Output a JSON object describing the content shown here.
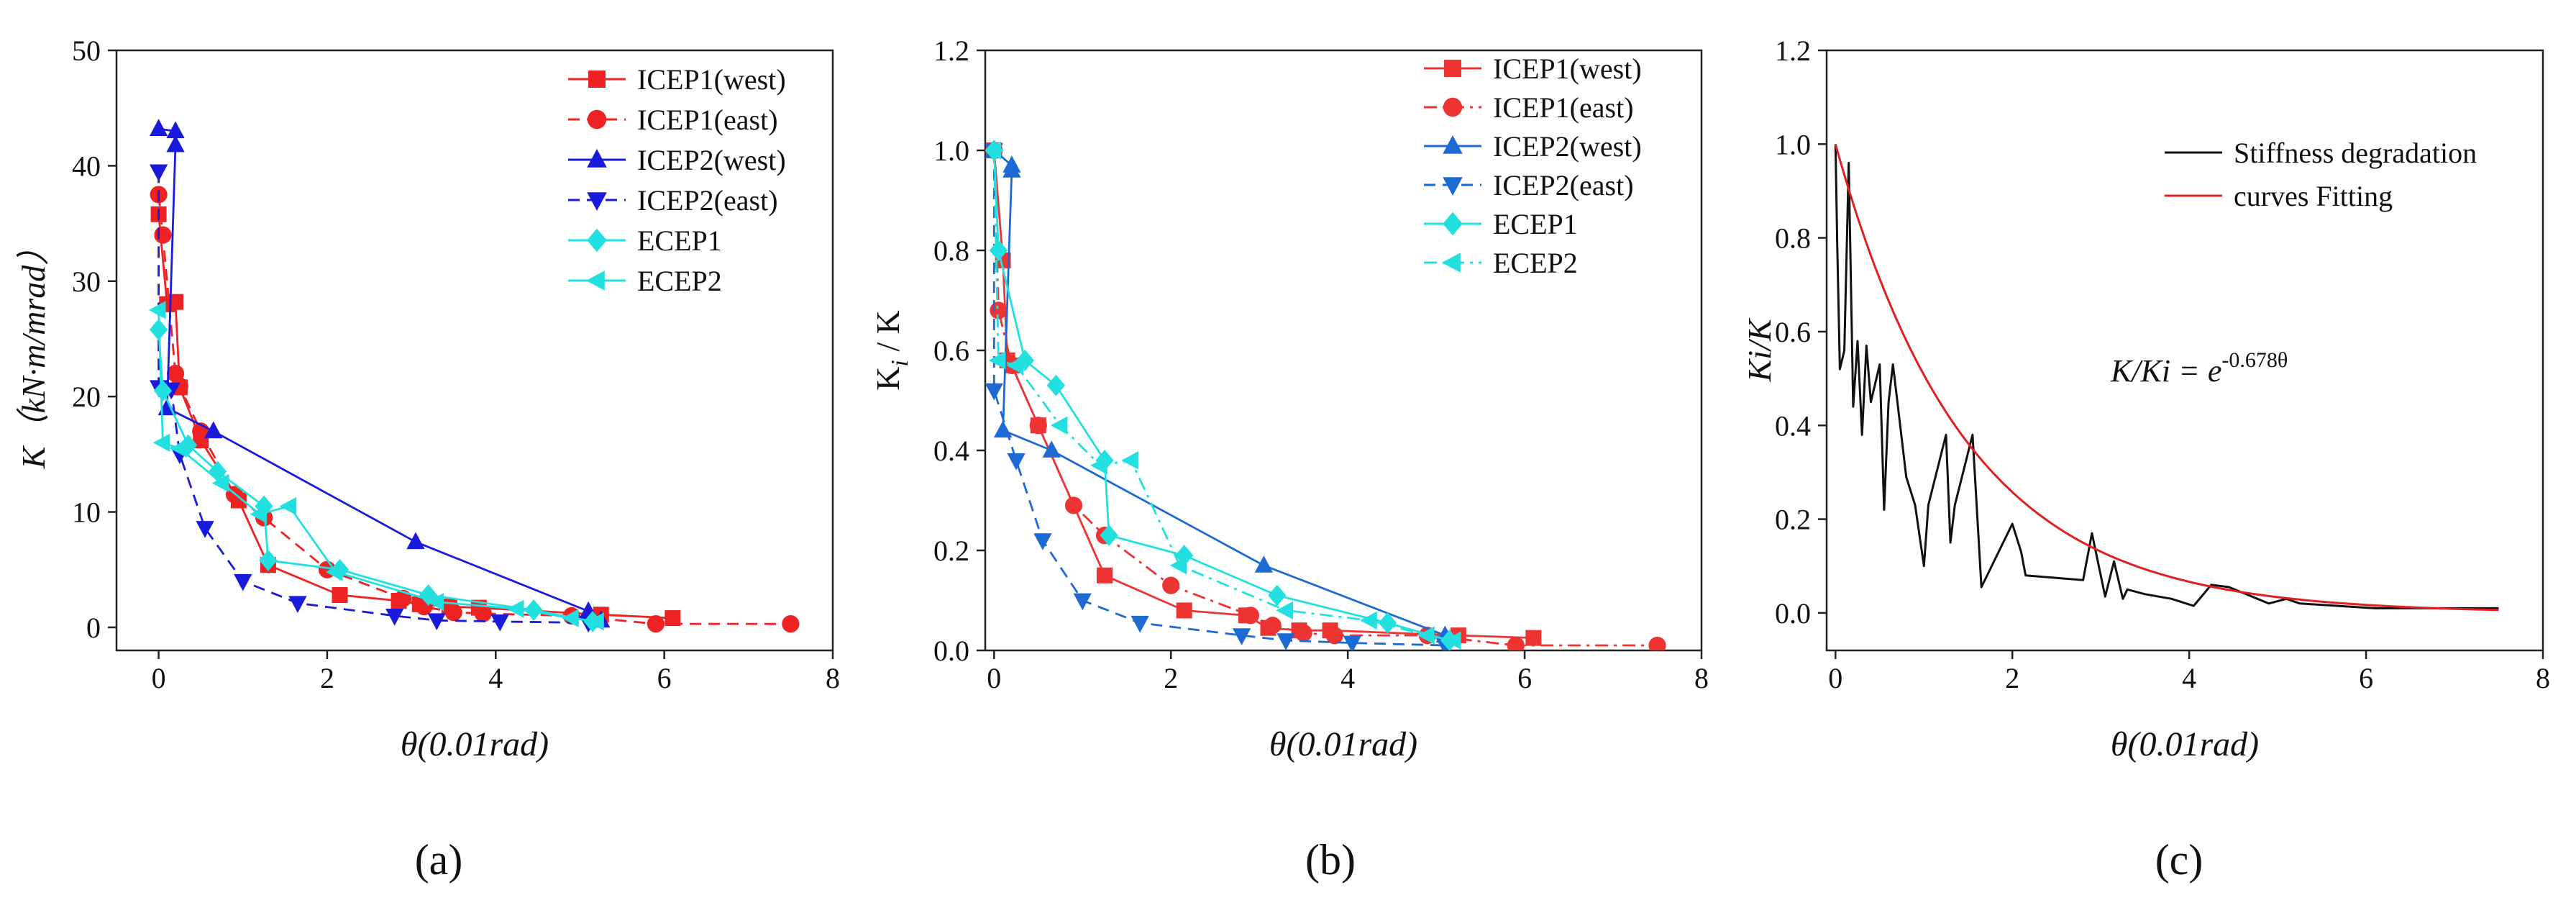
{
  "panels": [
    {
      "panel_label": "(a)",
      "chart_data": {
        "type": "line",
        "title": "",
        "xlabel": "θ(0.01rad)",
        "ylabel": "K（kN·m/mrad）",
        "xlim": [
          -0.5,
          8
        ],
        "ylim": [
          -2,
          50
        ],
        "xticks": [
          0,
          2,
          4,
          6,
          8
        ],
        "yticks": [
          0,
          10,
          20,
          30,
          40,
          50
        ],
        "legend_position": "top-right",
        "series": [
          {
            "name": "ICEP1(west)",
            "color": "#ee2222",
            "marker": "square",
            "dash": "solid",
            "x": [
              0.0,
              0.1,
              0.2,
              0.25,
              0.5,
              0.95,
              1.3,
              2.15,
              2.85,
              3.1,
              3.45,
              3.8,
              5.25,
              6.1
            ],
            "y": [
              35.8,
              28.0,
              28.2,
              20.8,
              16.2,
              11.0,
              5.4,
              2.8,
              2.3,
              2.0,
              1.8,
              1.7,
              1.1,
              0.8
            ]
          },
          {
            "name": "ICEP1(east)",
            "color": "#ee2222",
            "marker": "circle",
            "dash": "dashed",
            "x": [
              0.0,
              0.05,
              0.2,
              0.25,
              0.5,
              0.9,
              1.25,
              2.0,
              2.9,
              3.15,
              3.5,
              3.85,
              4.9,
              5.9,
              7.5
            ],
            "y": [
              37.5,
              34.0,
              22.0,
              20.9,
              17.0,
              11.5,
              9.5,
              5.0,
              2.5,
              1.8,
              1.3,
              1.2,
              1.0,
              0.3,
              0.3
            ]
          },
          {
            "name": "ICEP2(west)",
            "color": "#1a1adc",
            "marker": "triangle-up",
            "dash": "solid",
            "x": [
              0.0,
              0.2,
              0.2,
              0.1,
              0.65,
              3.05,
              5.1,
              5.25
            ],
            "y": [
              43.2,
              43.0,
              41.8,
              19.0,
              17.0,
              7.4,
              1.4,
              0.6
            ]
          },
          {
            "name": "ICEP2(east)",
            "color": "#1a1adc",
            "marker": "triangle-down",
            "dash": "dashed",
            "x": [
              0.0,
              0.0,
              0.15,
              0.25,
              0.55,
              1.0,
              1.65,
              2.8,
              3.3,
              4.05,
              5.1
            ],
            "y": [
              39.5,
              20.8,
              20.6,
              15.0,
              8.6,
              4.0,
              2.1,
              1.0,
              0.6,
              0.5,
              0.4
            ]
          },
          {
            "name": "ECEP1",
            "color": "#22e0e0",
            "marker": "diamond",
            "dash": "solid",
            "x": [
              0.0,
              0.05,
              0.35,
              0.7,
              1.25,
              1.3,
              2.15,
              3.2,
              4.45,
              5.15
            ],
            "y": [
              25.8,
              20.5,
              15.8,
              13.5,
              10.5,
              5.8,
              5.0,
              2.8,
              1.5,
              0.5
            ]
          },
          {
            "name": "ECEP2",
            "color": "#22e0e0",
            "marker": "triangle-left",
            "dash": "solid",
            "x": [
              0.0,
              0.05,
              0.25,
              0.75,
              1.2,
              1.55,
              2.1,
              3.3,
              4.25,
              4.9,
              5.2
            ],
            "y": [
              27.5,
              16.0,
              15.5,
              12.5,
              9.8,
              10.5,
              4.8,
              2.2,
              1.6,
              0.8,
              0.5
            ]
          }
        ]
      }
    },
    {
      "panel_label": "(b)",
      "chart_data": {
        "type": "line",
        "title": "",
        "xlabel": "θ(0.01rad)",
        "ylabel_main": "K",
        "ylabel_sub": "i",
        "ylabel_tail": " / K",
        "xlim": [
          -0.1,
          8
        ],
        "ylim": [
          0,
          1.2
        ],
        "xticks": [
          0,
          2,
          4,
          6,
          8
        ],
        "yticks": [
          0.0,
          0.2,
          0.4,
          0.6,
          0.8,
          1.0,
          1.2
        ],
        "legend_position": "top-right",
        "series": [
          {
            "name": "ICEP1(west)",
            "color": "#ee3333",
            "marker": "square",
            "dash": "solid",
            "x": [
              0.0,
              0.1,
              0.15,
              0.2,
              0.5,
              1.25,
              2.15,
              2.85,
              3.1,
              3.45,
              3.8,
              5.25,
              6.1
            ],
            "y": [
              1.0,
              0.78,
              0.58,
              0.57,
              0.45,
              0.15,
              0.08,
              0.07,
              0.045,
              0.04,
              0.04,
              0.03,
              0.025
            ]
          },
          {
            "name": "ICEP1(east)",
            "color": "#ee3333",
            "marker": "circle",
            "dash": "dashdot",
            "x": [
              0.0,
              0.05,
              0.2,
              0.5,
              0.9,
              1.25,
              2.0,
              2.9,
              3.15,
              3.5,
              3.85,
              4.9,
              5.9,
              7.5
            ],
            "y": [
              1.0,
              0.68,
              0.57,
              0.45,
              0.29,
              0.23,
              0.13,
              0.07,
              0.05,
              0.035,
              0.03,
              0.03,
              0.01,
              0.01
            ]
          },
          {
            "name": "ICEP2(west)",
            "color": "#1e6ad4",
            "marker": "triangle-up",
            "dash": "solid",
            "x": [
              0.0,
              0.2,
              0.2,
              0.1,
              0.65,
              3.05,
              5.1
            ],
            "y": [
              1.0,
              0.97,
              0.96,
              0.44,
              0.4,
              0.17,
              0.03
            ]
          },
          {
            "name": "ICEP2(east)",
            "color": "#1e6ad4",
            "marker": "triangle-down",
            "dash": "dashed",
            "x": [
              0.0,
              0.0,
              0.25,
              0.55,
              1.0,
              1.65,
              2.8,
              3.3,
              4.05,
              5.1
            ],
            "y": [
              1.0,
              0.52,
              0.38,
              0.22,
              0.1,
              0.055,
              0.03,
              0.02,
              0.015,
              0.01
            ]
          },
          {
            "name": "ECEP1",
            "color": "#22e0e0",
            "marker": "diamond",
            "dash": "solid",
            "x": [
              0.0,
              0.05,
              0.35,
              0.7,
              1.25,
              1.3,
              2.15,
              3.2,
              4.45,
              5.15
            ],
            "y": [
              1.0,
              0.8,
              0.58,
              0.53,
              0.38,
              0.23,
              0.19,
              0.11,
              0.055,
              0.02
            ]
          },
          {
            "name": "ECEP2",
            "color": "#22e0e0",
            "marker": "triangle-left",
            "dash": "dashdot",
            "x": [
              0.0,
              0.05,
              0.25,
              0.75,
              1.2,
              1.55,
              2.1,
              3.3,
              4.25,
              4.9,
              5.2
            ],
            "y": [
              1.0,
              0.58,
              0.57,
              0.45,
              0.37,
              0.38,
              0.17,
              0.08,
              0.06,
              0.03,
              0.02
            ]
          }
        ]
      }
    },
    {
      "panel_label": "(c)",
      "equation_main": "K/Ki = e",
      "equation_exp": "-0.678θ",
      "chart_data": {
        "type": "line",
        "title": "",
        "xlabel": "θ(0.01rad)",
        "ylabel": "Ki/K",
        "xlim": [
          -0.1,
          8
        ],
        "ylim": [
          -0.08,
          1.2
        ],
        "xticks": [
          0,
          2,
          4,
          6,
          8
        ],
        "yticks": [
          0.0,
          0.2,
          0.4,
          0.6,
          0.8,
          1.0,
          1.2
        ],
        "legend_position": "top-right",
        "series": [
          {
            "name": "Stiffness degradation",
            "color": "#111111",
            "marker": "none",
            "dash": "solid",
            "x": [
              0.0,
              0.02,
              0.05,
              0.1,
              0.15,
              0.2,
              0.25,
              0.3,
              0.35,
              0.4,
              0.5,
              0.55,
              0.6,
              0.65,
              0.7,
              0.8,
              0.9,
              1.0,
              1.05,
              1.25,
              1.3,
              1.35,
              1.55,
              1.65,
              2.0,
              2.1,
              2.15,
              2.8,
              2.9,
              3.05,
              3.15,
              3.25,
              3.3,
              3.5,
              3.8,
              4.05,
              4.25,
              4.45,
              4.9,
              5.1,
              5.25,
              6.1,
              7.5
            ],
            "y": [
              1.0,
              0.78,
              0.52,
              0.56,
              0.96,
              0.44,
              0.58,
              0.38,
              0.57,
              0.45,
              0.53,
              0.22,
              0.45,
              0.53,
              0.45,
              0.29,
              0.23,
              0.1,
              0.23,
              0.38,
              0.15,
              0.23,
              0.38,
              0.055,
              0.19,
              0.13,
              0.08,
              0.07,
              0.17,
              0.035,
              0.11,
              0.03,
              0.05,
              0.04,
              0.03,
              0.015,
              0.06,
              0.055,
              0.02,
              0.03,
              0.02,
              0.01,
              0.01
            ]
          },
          {
            "name": "curves Fitting",
            "color": "#e02020",
            "marker": "none",
            "dash": "solid",
            "function": "exp(-0.678x)",
            "x_range": [
              0,
              7.5
            ]
          }
        ]
      }
    }
  ]
}
